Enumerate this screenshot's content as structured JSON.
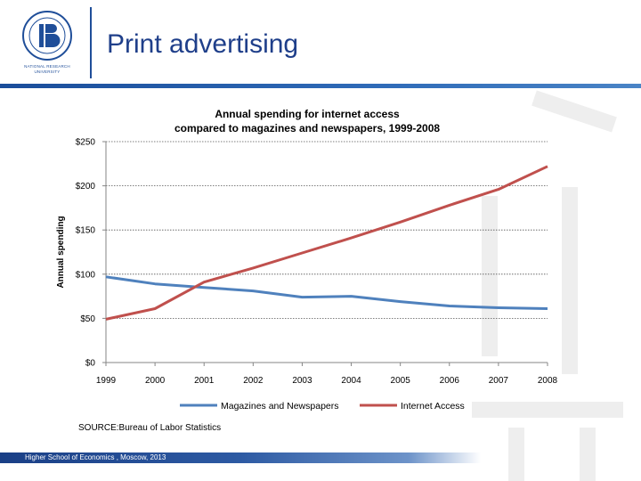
{
  "header": {
    "title": "Print advertising",
    "logo_caption": "National Research University"
  },
  "source": "SOURCE:Bureau of Labor Statistics",
  "footer": {
    "text": "Higher School of Economics , Moscow, 2013"
  },
  "colors": {
    "brand": "#1f4e99",
    "series_magazines": "#4f81bd",
    "series_internet": "#c0504d"
  },
  "chart_data": {
    "type": "line",
    "title_line1": "Annual spending for internet access",
    "title_line2": "compared to magazines and newspapers, 1999-2008",
    "xlabel": "",
    "ylabel": "Annual spending",
    "categories": [
      "1999",
      "2000",
      "2001",
      "2002",
      "2003",
      "2004",
      "2005",
      "2006",
      "2007",
      "2008"
    ],
    "y_ticks": [
      0,
      50,
      100,
      150,
      200,
      250
    ],
    "y_tick_labels": [
      "$0",
      "$50",
      "$100",
      "$150",
      "$200",
      "$250"
    ],
    "ylim": [
      0,
      250
    ],
    "grid": true,
    "legend_position": "bottom",
    "series": [
      {
        "name": "Magazines and Newspapers",
        "color": "#4f81bd",
        "values": [
          97,
          89,
          85,
          81,
          74,
          75,
          69,
          64,
          62,
          61
        ]
      },
      {
        "name": "Internet Access",
        "color": "#c0504d",
        "values": [
          49,
          61,
          91,
          107,
          124,
          141,
          159,
          178,
          196,
          222
        ]
      }
    ]
  }
}
